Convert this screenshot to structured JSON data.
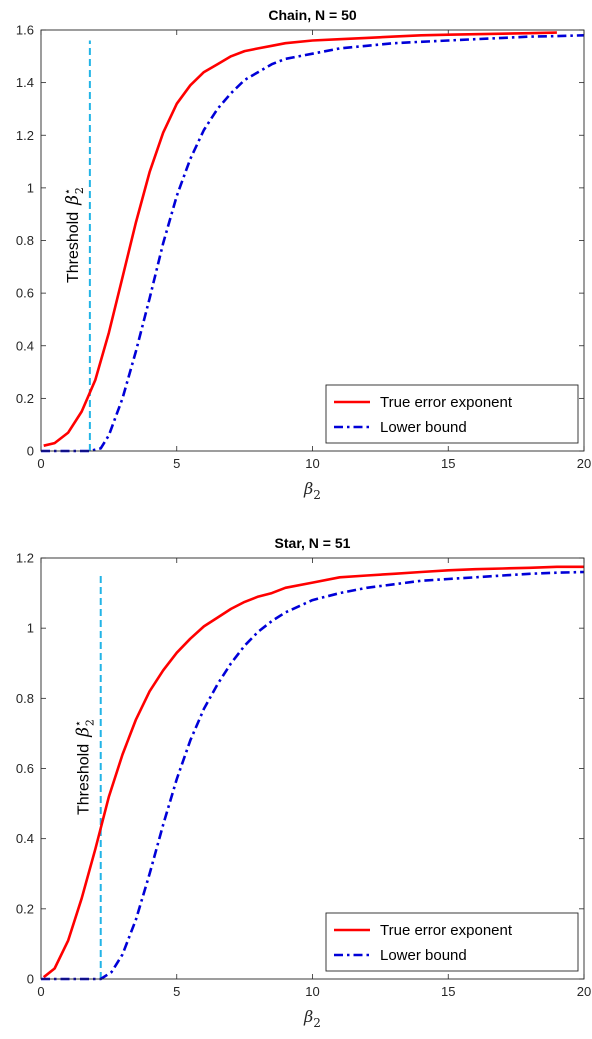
{
  "chart_data": [
    {
      "type": "line",
      "title": "Chain, N = 50",
      "xlabel": "β",
      "xlabel_subscript": "2",
      "ylabel": "",
      "xlim": [
        0,
        20
      ],
      "ylim": [
        0,
        1.6
      ],
      "xticks": [
        0,
        5,
        10,
        15,
        20
      ],
      "yticks": [
        0,
        0.2,
        0.4,
        0.6,
        0.8,
        1,
        1.2,
        1.4,
        1.6
      ],
      "xtick_labels": [
        "0",
        "5",
        "10",
        "15",
        "20"
      ],
      "ytick_labels": [
        "0",
        "0.2",
        "0.4",
        "0.6",
        "0.8",
        "1",
        "1.2",
        "1.4",
        "1.6"
      ],
      "grid": false,
      "legend_position": "bottom-right",
      "threshold": {
        "x": 1.8,
        "y_top": 1.56,
        "label": "Threshold",
        "symbol": "β",
        "symbol_sup": "⋆",
        "symbol_sub": "2",
        "color": "#22b4e6"
      },
      "series": [
        {
          "name": "True error exponent",
          "color": "#ff0000",
          "style": "solid",
          "x": [
            0.1,
            0.5,
            1,
            1.5,
            2,
            2.5,
            3,
            3.5,
            4,
            4.5,
            5,
            5.5,
            6,
            6.5,
            7,
            7.5,
            8,
            8.5,
            9,
            10,
            11,
            12,
            13,
            14,
            15,
            16,
            17,
            18,
            19
          ],
          "y": [
            0.02,
            0.03,
            0.07,
            0.15,
            0.27,
            0.45,
            0.66,
            0.87,
            1.06,
            1.21,
            1.32,
            1.39,
            1.44,
            1.47,
            1.5,
            1.52,
            1.53,
            1.54,
            1.55,
            1.56,
            1.565,
            1.57,
            1.575,
            1.58,
            1.582,
            1.584,
            1.586,
            1.588,
            1.59
          ]
        },
        {
          "name": "Lower bound",
          "color": "#0000d8",
          "style": "dashdot",
          "x": [
            0,
            1,
            1.8,
            2.2,
            2.5,
            3,
            3.5,
            4,
            4.5,
            5,
            5.5,
            6,
            6.5,
            7,
            7.5,
            8,
            8.5,
            9,
            10,
            11,
            12,
            13,
            14,
            15,
            16,
            17,
            18,
            19,
            20
          ],
          "y": [
            0,
            0,
            0,
            0.01,
            0.06,
            0.2,
            0.38,
            0.58,
            0.79,
            0.97,
            1.11,
            1.22,
            1.3,
            1.36,
            1.41,
            1.44,
            1.47,
            1.49,
            1.51,
            1.53,
            1.54,
            1.55,
            1.555,
            1.56,
            1.565,
            1.57,
            1.575,
            1.577,
            1.58
          ]
        }
      ]
    },
    {
      "type": "line",
      "title": "Star, N = 51",
      "xlabel": "β",
      "xlabel_subscript": "2",
      "ylabel": "",
      "xlim": [
        0,
        20
      ],
      "ylim": [
        0,
        1.2
      ],
      "xticks": [
        0,
        5,
        10,
        15,
        20
      ],
      "yticks": [
        0,
        0.2,
        0.4,
        0.6,
        0.8,
        1,
        1.2
      ],
      "xtick_labels": [
        "0",
        "5",
        "10",
        "15",
        "20"
      ],
      "ytick_labels": [
        "0",
        "0.2",
        "0.4",
        "0.6",
        "0.8",
        "1",
        "1.2"
      ],
      "grid": false,
      "legend_position": "bottom-right",
      "threshold": {
        "x": 2.2,
        "y_top": 1.16,
        "label": "Threshold",
        "symbol": "β",
        "symbol_sup": "⋆",
        "symbol_sub": "2",
        "color": "#22b4e6"
      },
      "series": [
        {
          "name": "True error exponent",
          "color": "#ff0000",
          "style": "solid",
          "x": [
            0.1,
            0.5,
            1,
            1.5,
            2,
            2.5,
            3,
            3.5,
            4,
            4.5,
            5,
            5.5,
            6,
            6.5,
            7,
            7.5,
            8,
            8.5,
            9,
            10,
            11,
            12,
            13,
            14,
            15,
            16,
            17,
            18,
            19,
            20
          ],
          "y": [
            0.005,
            0.03,
            0.11,
            0.23,
            0.37,
            0.52,
            0.64,
            0.74,
            0.82,
            0.88,
            0.93,
            0.97,
            1.005,
            1.03,
            1.055,
            1.075,
            1.09,
            1.1,
            1.115,
            1.13,
            1.145,
            1.15,
            1.155,
            1.16,
            1.165,
            1.168,
            1.17,
            1.172,
            1.175,
            1.175
          ]
        },
        {
          "name": "Lower bound",
          "color": "#0000d8",
          "style": "dashdot",
          "x": [
            0,
            1,
            2.2,
            2.6,
            3,
            3.5,
            4,
            4.5,
            5,
            5.5,
            6,
            6.5,
            7,
            7.5,
            8,
            8.5,
            9,
            10,
            11,
            12,
            13,
            14,
            15,
            16,
            17,
            18,
            19,
            20
          ],
          "y": [
            0,
            0,
            0,
            0.02,
            0.07,
            0.17,
            0.3,
            0.44,
            0.57,
            0.68,
            0.77,
            0.84,
            0.9,
            0.95,
            0.99,
            1.02,
            1.045,
            1.08,
            1.1,
            1.115,
            1.125,
            1.135,
            1.14,
            1.145,
            1.15,
            1.155,
            1.158,
            1.16
          ]
        }
      ]
    }
  ]
}
